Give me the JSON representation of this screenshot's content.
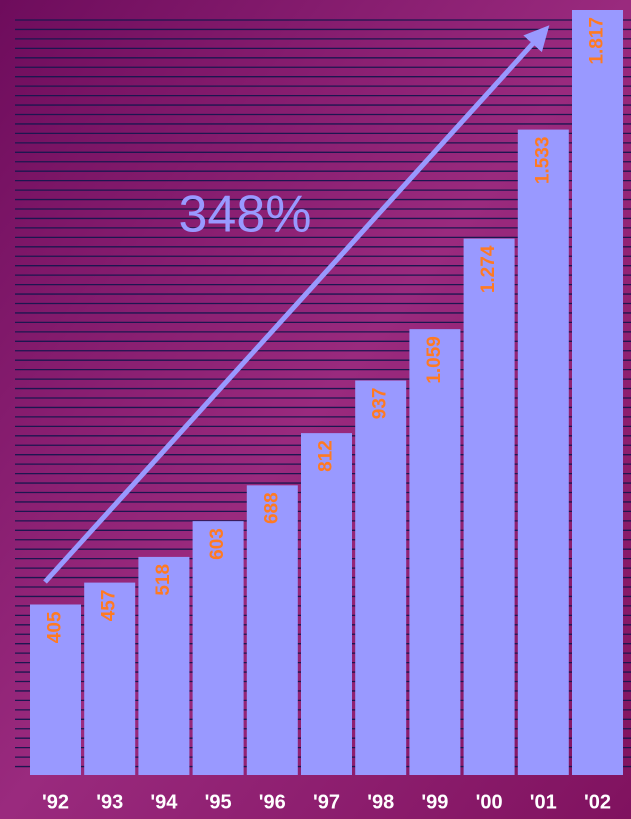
{
  "chart_data": {
    "type": "bar",
    "annotation": "348%",
    "categories": [
      "'92",
      "'93",
      "'94",
      "'95",
      "'96",
      "'97",
      "'98",
      "'99",
      "'00",
      "'01",
      "'02"
    ],
    "values": [
      405,
      457,
      518,
      603,
      688,
      812,
      937,
      1059,
      1274,
      1533,
      1817
    ],
    "value_labels": [
      "405",
      "457",
      "518",
      "603",
      "688",
      "812",
      "937",
      "1.059",
      "1.274",
      "1.533",
      "1.817"
    ],
    "color": "#9999ff"
  }
}
